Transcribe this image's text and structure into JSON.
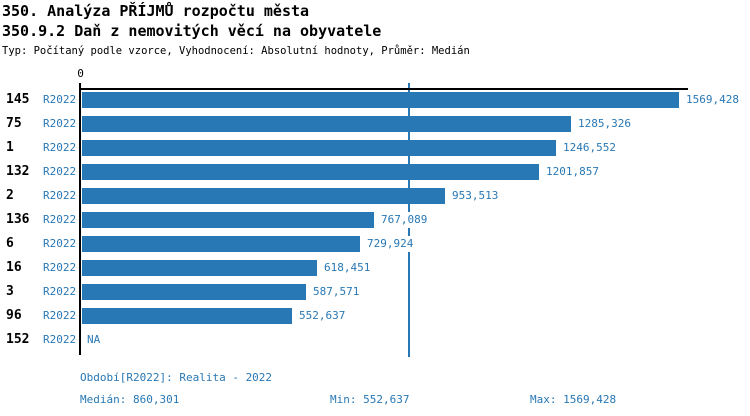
{
  "title": "350. Analýza PŘÍJMŮ rozpočtu města",
  "subtitle": "350.9.2 Daň z nemovitých věcí na obyvatele",
  "meta_line": "Typ: Počítaný podle vzorce, Vyhodnocení: Absolutní hodnoty, Průměr: Medián",
  "colors": {
    "bar": "#2878b5",
    "accent_text": "#2878b5",
    "axis": "#000000",
    "background": "#ffffff"
  },
  "chart_data": {
    "type": "bar",
    "orientation": "horizontal",
    "axis_zero_label": "0",
    "series_label": "R2022",
    "categories": [
      "145",
      "75",
      "1",
      "132",
      "2",
      "136",
      "6",
      "16",
      "3",
      "96",
      "152"
    ],
    "values": [
      1569.428,
      1285.326,
      1246.552,
      1201.857,
      953.513,
      767.089,
      729.924,
      618.451,
      587.571,
      552.637,
      null
    ],
    "value_labels": [
      "1569,428",
      "1285,326",
      "1246,552",
      "1201,857",
      "953,513",
      "767,089",
      "729,924",
      "618,451",
      "587,571",
      "552,637",
      "NA"
    ],
    "xlim": [
      0,
      1569.428
    ],
    "median": 860.301,
    "grid": false,
    "legend": "none"
  },
  "footer": {
    "period": "Období[R2022]: Realita - 2022",
    "median": "Medián: 860,301",
    "min": "Min: 552,637",
    "max": "Max: 1569,428"
  }
}
